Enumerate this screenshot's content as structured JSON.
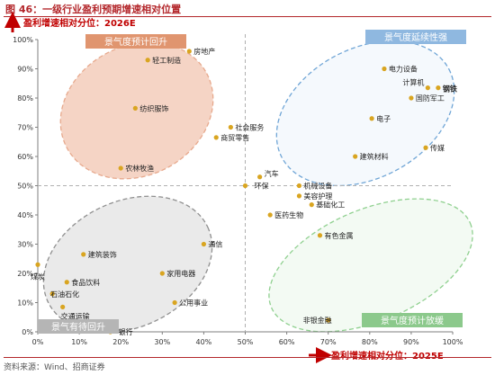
{
  "figure": {
    "title": "图 46：一级行业盈利预期增速相对位置",
    "source": "资料来源：Wind、招商证券"
  },
  "colors": {
    "accent": "#b3262a",
    "orange_zone": "#f1c6b1",
    "orange_label": "#e0956f",
    "blue_zone_stroke": "#6fa5d6",
    "blue_label": "#8fb8e0",
    "gray_zone": "#e3e3e3",
    "gray_label": "#b5b5b5",
    "green_zone_stroke": "#8fd08f",
    "green_label": "#8cc98c",
    "marker": "#d9a521"
  },
  "chart_data": {
    "type": "scatter",
    "ylabel": "盈利增速相对分位：2026E",
    "xlabel": "盈利增速相对分位：2025E",
    "xlim": [
      0,
      100
    ],
    "ylim": [
      0,
      100
    ],
    "x_ticks": [
      "0%",
      "10%",
      "20%",
      "30%",
      "40%",
      "50%",
      "60%",
      "70%",
      "80%",
      "90%",
      "100%"
    ],
    "y_ticks": [
      "0%",
      "10%",
      "20%",
      "30%",
      "40%",
      "50%",
      "60%",
      "70%",
      "80%",
      "90%",
      "100%"
    ],
    "reference_lines": {
      "x": 50,
      "y": 50
    },
    "zones": [
      {
        "label": "景气度预计回升",
        "color": "orange"
      },
      {
        "label": "景气度延续性强",
        "color": "blue"
      },
      {
        "label": "景气有待回升",
        "color": "gray"
      },
      {
        "label": "景气度预计放缓",
        "color": "green"
      }
    ],
    "points": [
      {
        "name": "房地产",
        "x": 36.5,
        "y": 96
      },
      {
        "name": "轻工制造",
        "x": 26.5,
        "y": 93
      },
      {
        "name": "纺织服饰",
        "x": 23.5,
        "y": 76.5
      },
      {
        "name": "社会服务",
        "x": 46.5,
        "y": 70
      },
      {
        "name": "商贸零售",
        "x": 43,
        "y": 66.5
      },
      {
        "name": "农林牧渔",
        "x": 20,
        "y": 56
      },
      {
        "name": "电力设备",
        "x": 83.5,
        "y": 90
      },
      {
        "name": "钢铁",
        "x": 96.5,
        "y": 83.5
      },
      {
        "name": "计算机",
        "x": 94,
        "y": 83.5
      },
      {
        "name": "国防军工",
        "x": 90,
        "y": 80
      },
      {
        "name": "电子",
        "x": 80.5,
        "y": 73
      },
      {
        "name": "传媒",
        "x": 93.5,
        "y": 63
      },
      {
        "name": "建筑材料",
        "x": 76.5,
        "y": 60
      },
      {
        "name": "汽车",
        "x": 53.5,
        "y": 53
      },
      {
        "name": "环保",
        "x": 50,
        "y": 50
      },
      {
        "name": "机械设备",
        "x": 63,
        "y": 50
      },
      {
        "name": "美容护理",
        "x": 63,
        "y": 46.5
      },
      {
        "name": "基础化工",
        "x": 66,
        "y": 43.5
      },
      {
        "name": "医药生物",
        "x": 56,
        "y": 40
      },
      {
        "name": "有色金属",
        "x": 68,
        "y": 33
      },
      {
        "name": "通信",
        "x": 40,
        "y": 30
      },
      {
        "name": "建筑装饰",
        "x": 11,
        "y": 26.5
      },
      {
        "name": "家用电器",
        "x": 30,
        "y": 20
      },
      {
        "name": "公用事业",
        "x": 33,
        "y": 10
      },
      {
        "name": "煤炭",
        "x": 0,
        "y": 23
      },
      {
        "name": "食品饮料",
        "x": 7,
        "y": 17
      },
      {
        "name": "石油石化",
        "x": 3.5,
        "y": 13
      },
      {
        "name": "交通运输",
        "x": 6,
        "y": 8.5
      },
      {
        "name": "非银金融",
        "x": 70,
        "y": 4
      },
      {
        "name": "银行",
        "x": 17.5,
        "y": 0
      }
    ]
  }
}
